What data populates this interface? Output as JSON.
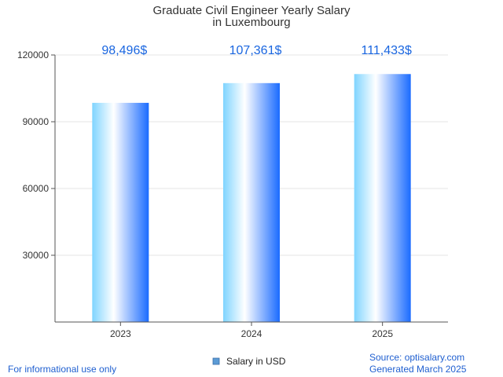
{
  "chart_data": {
    "type": "bar",
    "title": [
      "Graduate Civil Engineer Yearly Salary",
      "in Luxembourg"
    ],
    "categories": [
      "2023",
      "2024",
      "2025"
    ],
    "series": [
      {
        "name": "Salary in USD",
        "values": [
          98496,
          107361,
          111433
        ]
      }
    ],
    "data_labels": [
      "98,496$",
      "107,361$",
      "111,433$"
    ],
    "yticks": [
      "30000",
      "60000",
      "90000",
      "120000"
    ],
    "ylim": [
      0,
      120000
    ],
    "grid": true,
    "legend": "bottom-center",
    "xlabel": "",
    "ylabel": ""
  },
  "footer": {
    "left": "For informational use only",
    "source": "Source: optisalary.com",
    "generated": "Generated March 2025"
  },
  "colors": {
    "bar_light": "#7fd4ff",
    "bar_mid": "#ffffff",
    "bar_dark": "#1a6bff",
    "legend_swatch": "#5b9bd5",
    "label": "#1a66e0",
    "footer": "#1f5fd0",
    "grid": "#e6e6e6",
    "axis": "#555555"
  }
}
